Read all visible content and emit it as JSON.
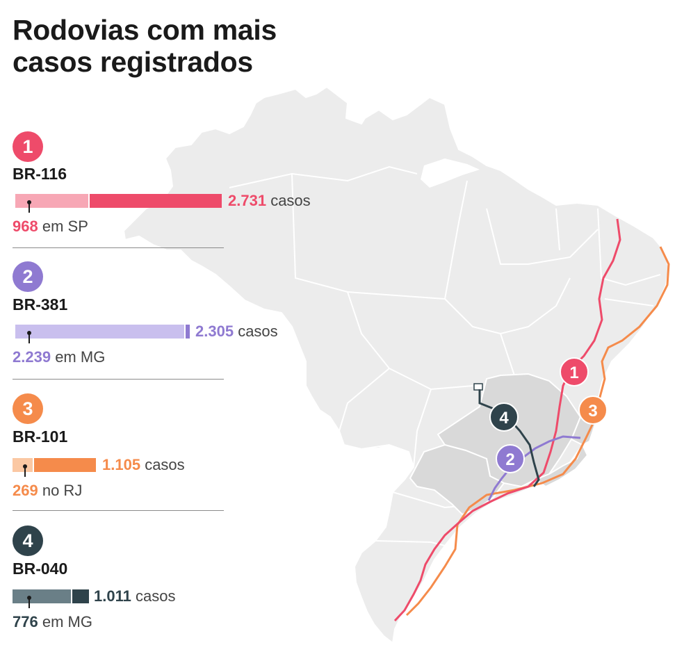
{
  "title": "Rodovias com mais casos registrados",
  "colors": {
    "br116": "#ee4b6a",
    "br116_light": "#f7a7b5",
    "br381": "#8f7ad1",
    "br381_light": "#c9bfee",
    "br101": "#f58b4b",
    "br101_light": "#fbc8a3",
    "br040": "#2f434b",
    "br040_light": "#6a7f87"
  },
  "chart_data": {
    "type": "bar",
    "categories": [
      "BR-116",
      "BR-381",
      "BR-101",
      "BR-040"
    ],
    "series": [
      {
        "values": [
          2731,
          2305,
          1105,
          1011
        ]
      },
      {
        "values": [
          968,
          2239,
          269,
          776
        ]
      }
    ],
    "unit": "casos",
    "ranks": [
      "1",
      "2",
      "3",
      "4"
    ],
    "totals_text": [
      "2.731",
      "2.305",
      "1.105",
      "1.011"
    ],
    "sub_values_text": [
      "968",
      "2.239",
      "269",
      "776"
    ],
    "sub_suffix": [
      "em SP",
      "em MG",
      "no RJ",
      "em MG"
    ]
  },
  "map_labels": [
    "1",
    "4",
    "2",
    "3"
  ]
}
